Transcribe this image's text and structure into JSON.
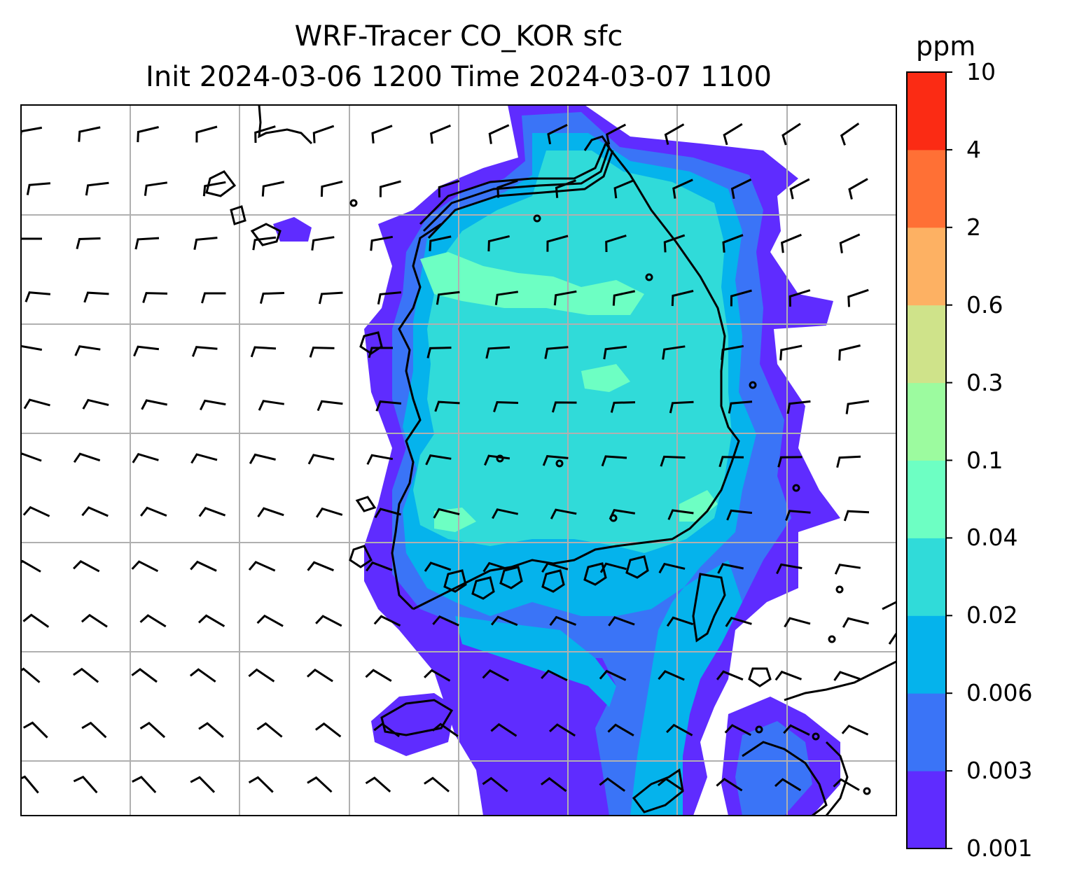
{
  "title_line1": "WRF-Tracer CO_KOR sfc",
  "title_line2": "Init 2024-03-06 1200 Time 2024-03-07 1100",
  "colorbar": {
    "unit": "ppm",
    "levels": [
      "0.001",
      "0.003",
      "0.006",
      "0.02",
      "0.04",
      "0.1",
      "0.3",
      "0.6",
      "2",
      "4",
      "10"
    ],
    "colors": [
      "#5f2cff",
      "#3a74f7",
      "#05b3ec",
      "#30dbd9",
      "#6dffc3",
      "#9cfb9f",
      "#cfe38a",
      "#fdb163",
      "#ff7035",
      "#fb2b14"
    ]
  },
  "map": {
    "field": "CO_KOR tracer concentration (surface)",
    "features": [
      "coastline",
      "lat-lon gridlines",
      "wind barbs"
    ]
  }
}
